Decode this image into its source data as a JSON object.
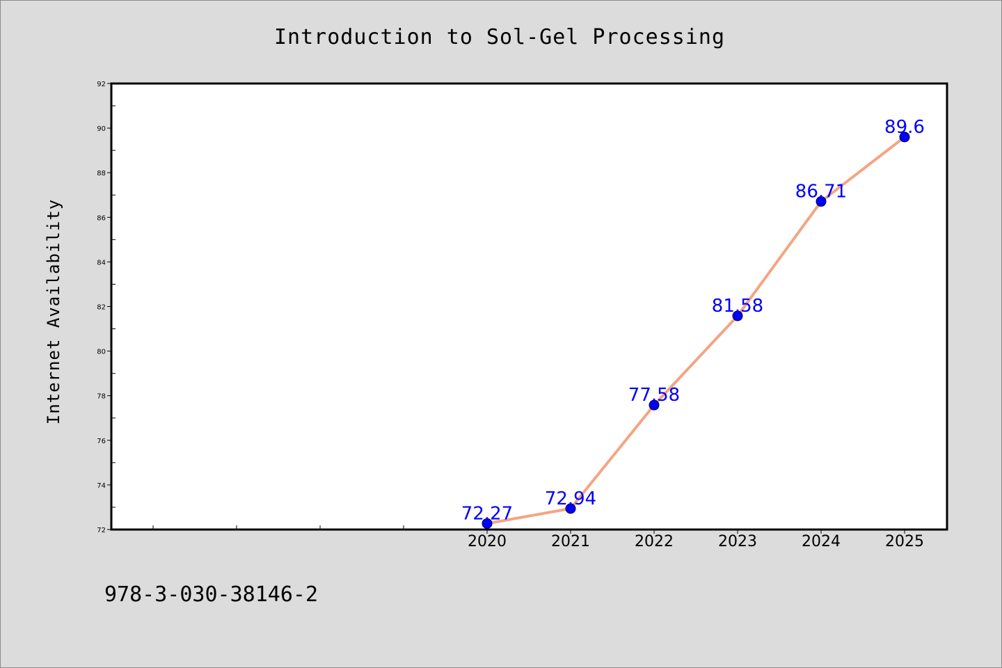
{
  "chart_data": {
    "type": "line",
    "title": "Introduction to Sol-Gel Processing",
    "xlabel": "",
    "ylabel": "Internet Availability",
    "categories": [
      "2020",
      "2021",
      "2022",
      "2023",
      "2024",
      "2025"
    ],
    "series": [
      {
        "values": [
          72.27,
          72.94,
          77.58,
          81.58,
          86.71,
          89.6
        ],
        "line_color": "#f4a582",
        "marker_color": "#0000ff",
        "label_color": "#0000ff"
      }
    ],
    "ylim": [
      72,
      92
    ],
    "yticks": [
      72,
      74,
      76,
      78,
      80,
      82,
      84,
      86,
      88,
      90,
      92
    ],
    "grid": false,
    "legend": "none"
  },
  "footer": {
    "isbn": "978-3-030-38146-2"
  }
}
